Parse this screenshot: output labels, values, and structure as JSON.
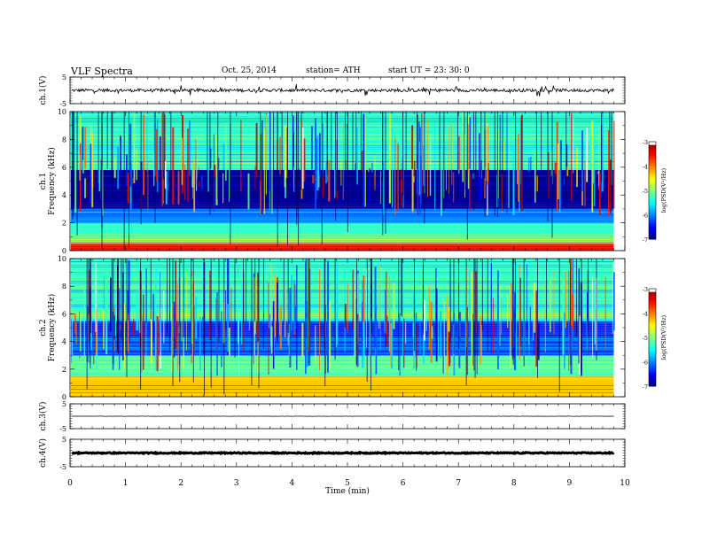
{
  "header": {
    "title": "VLF Spectra",
    "date": "Oct. 25, 2014",
    "station": "station= ATH",
    "start": "start  UT =   23: 30: 0"
  },
  "colorbar": {
    "label": "log(PSD(V²/Hz)",
    "ticks": [
      -3,
      -4,
      -5,
      -6,
      -7
    ]
  },
  "chart_data": [
    {
      "type": "line",
      "ylabel": "ch.1(V)",
      "ylim": [
        -5,
        5
      ],
      "yticks": [
        -5,
        5
      ],
      "xlim": [
        0,
        10
      ],
      "series": [
        {
          "values_note": "",
          "mean": 0,
          "noise_amplitude": 0.6
        }
      ]
    },
    {
      "type": "heatmap",
      "ylabel": "ch.1",
      "ylabel2": "Frequency  (kHz)",
      "ylim": [
        0,
        10
      ],
      "yticks": [
        0,
        2,
        4,
        6,
        8,
        10
      ],
      "xlim": [
        0,
        10
      ],
      "data_end_min": 9.8,
      "zlim": [
        -7,
        -3
      ],
      "bands": [
        {
          "from": 0,
          "to": 0.6,
          "level": -3.6
        },
        {
          "from": 0.6,
          "to": 2.0,
          "level": -5.3
        },
        {
          "from": 2.0,
          "to": 3.0,
          "level": -6.0
        },
        {
          "from": 3.0,
          "to": 5.8,
          "level": -6.9
        },
        {
          "from": 5.8,
          "to": 10,
          "level": -5.3
        }
      ]
    },
    {
      "type": "heatmap",
      "ylabel": "ch.2",
      "ylabel2": "Frequency  (kHz)",
      "ylim": [
        0,
        10
      ],
      "yticks": [
        0,
        2,
        4,
        6,
        8,
        10
      ],
      "xlim": [
        0,
        10
      ],
      "data_end_min": 9.8,
      "zlim": [
        -7,
        -3
      ],
      "bands": [
        {
          "from": 0,
          "to": 1.5,
          "level": -4.3
        },
        {
          "from": 1.5,
          "to": 3.0,
          "level": -5.2
        },
        {
          "from": 3.0,
          "to": 5.5,
          "level": -6.2
        },
        {
          "from": 5.5,
          "to": 10,
          "level": -5.3
        }
      ]
    },
    {
      "type": "line",
      "ylabel": "ch.3(V)",
      "ylim": [
        -5,
        5
      ],
      "yticks": [
        -5,
        5
      ],
      "xlim": [
        0,
        10
      ],
      "series": [
        {
          "mean": 0,
          "noise_amplitude": 0.05
        }
      ]
    },
    {
      "type": "line",
      "ylabel": "ch.4(V)",
      "ylim": [
        -5,
        5
      ],
      "yticks": [
        -5,
        5
      ],
      "xlim": [
        0,
        10
      ],
      "series": [
        {
          "mean": 0,
          "noise_amplitude": 0.2
        }
      ]
    }
  ],
  "xaxis": {
    "label": "Time  (min)",
    "ticks": [
      0,
      1,
      2,
      3,
      4,
      5,
      6,
      7,
      8,
      9,
      10
    ]
  }
}
